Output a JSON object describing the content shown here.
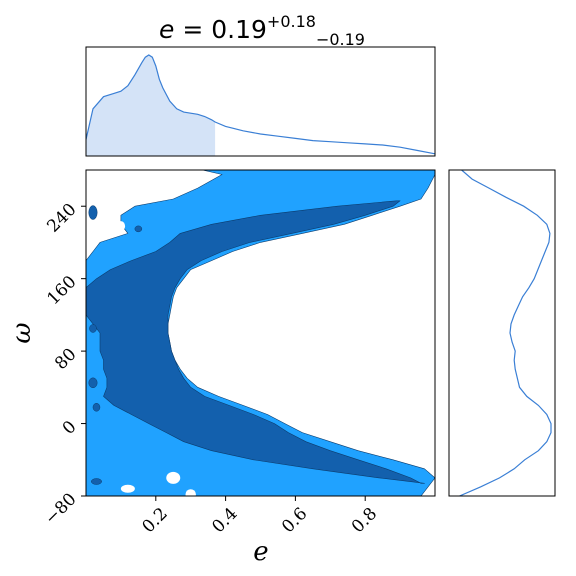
{
  "chart_data": [
    {
      "type": "area",
      "panel": "marginal-e",
      "title": {
        "variable": "e",
        "equals": " = ",
        "value": "0.19",
        "upper": "+0.18",
        "lower": "−0.19"
      },
      "x": [
        0.0,
        0.02,
        0.05,
        0.08,
        0.1,
        0.12,
        0.14,
        0.16,
        0.17,
        0.18,
        0.19,
        0.2,
        0.21,
        0.22,
        0.24,
        0.26,
        0.28,
        0.3,
        0.32,
        0.34,
        0.36,
        0.37,
        0.4,
        0.45,
        0.5,
        0.55,
        0.6,
        0.65,
        0.7,
        0.75,
        0.8,
        0.85,
        0.9,
        0.95,
        1.0
      ],
      "density": [
        0.15,
        0.43,
        0.54,
        0.57,
        0.59,
        0.64,
        0.74,
        0.85,
        0.9,
        0.92,
        0.9,
        0.82,
        0.7,
        0.62,
        0.5,
        0.43,
        0.4,
        0.39,
        0.38,
        0.36,
        0.33,
        0.31,
        0.27,
        0.23,
        0.2,
        0.18,
        0.16,
        0.14,
        0.13,
        0.12,
        0.11,
        0.1,
        0.08,
        0.05,
        0.02
      ],
      "shaded_interval": [
        0.0,
        0.37
      ],
      "xlim": [
        0,
        1
      ],
      "colors": {
        "line": "#3a7fd5",
        "fill": "#d4e3f7"
      }
    },
    {
      "type": "heatmap",
      "panel": "joint-e-omega",
      "xlabel": "e",
      "ylabel": "ω",
      "xlim": [
        0,
        1
      ],
      "ylim": [
        -80,
        280
      ],
      "xticks": [
        0.2,
        0.4,
        0.6,
        0.8
      ],
      "xtick_labels": [
        "0.2",
        "0.4",
        "0.6",
        "0.8"
      ],
      "yticks": [
        -80,
        0,
        80,
        160,
        240
      ],
      "ytick_labels": [
        "−80",
        "0",
        "80",
        "160",
        "240"
      ],
      "levels": [
        "outer",
        "inner"
      ],
      "colors": {
        "outer": "#20a2ff",
        "inner": "#1360ad",
        "edge": "#0b3c6e"
      },
      "outer_region_e_at_omega": {
        "omega": [
          283,
          275,
          260,
          248,
          240,
          230,
          220,
          210,
          200,
          190,
          180,
          170,
          160,
          150,
          140,
          130,
          120,
          110,
          100,
          90,
          80,
          70,
          60,
          50,
          40,
          30,
          20,
          10,
          0,
          -10,
          -20,
          -30,
          -40,
          -50,
          -60,
          -70,
          -80
        ],
        "e_min": [
          0.3,
          0.39,
          0.32,
          0.25,
          0.14,
          0.1,
          0.1,
          0.12,
          0.04,
          0.02,
          0.0,
          0.0,
          0.0,
          0.0,
          0.0,
          0.0,
          0.0,
          0.0,
          0.0,
          0.0,
          0.0,
          0.0,
          0.0,
          0.0,
          0.0,
          0.0,
          0.0,
          0.0,
          0.0,
          0.0,
          0.0,
          0.0,
          0.0,
          0.0,
          0.0,
          0.0,
          0.0
        ],
        "e_max": [
          1.0,
          1.0,
          0.98,
          0.96,
          0.9,
          0.82,
          0.74,
          0.62,
          0.5,
          0.42,
          0.36,
          0.3,
          0.28,
          0.26,
          0.25,
          0.245,
          0.24,
          0.235,
          0.235,
          0.24,
          0.245,
          0.255,
          0.27,
          0.29,
          0.32,
          0.38,
          0.45,
          0.52,
          0.57,
          0.62,
          0.7,
          0.78,
          0.88,
          0.97,
          1.0,
          0.98,
          0.96
        ]
      },
      "inner_region_e_at_omega": {
        "omega": [
          246,
          240,
          230,
          220,
          210,
          200,
          190,
          180,
          170,
          160,
          150,
          140,
          130,
          120,
          110,
          100,
          90,
          80,
          70,
          60,
          50,
          40,
          30,
          20,
          10,
          0,
          -10,
          -20,
          -30,
          -40,
          -50,
          -60,
          -66
        ],
        "e_min": [
          0.89,
          0.72,
          0.5,
          0.36,
          0.27,
          0.24,
          0.2,
          0.13,
          0.07,
          0.03,
          0.0,
          0.0,
          0.0,
          0.0,
          0.02,
          0.04,
          0.04,
          0.04,
          0.05,
          0.05,
          0.06,
          0.06,
          0.05,
          0.08,
          0.13,
          0.18,
          0.23,
          0.28,
          0.36,
          0.48,
          0.65,
          0.84,
          0.97
        ],
        "e_max": [
          0.9,
          0.88,
          0.8,
          0.71,
          0.59,
          0.47,
          0.39,
          0.33,
          0.29,
          0.27,
          0.255,
          0.245,
          0.24,
          0.235,
          0.235,
          0.235,
          0.24,
          0.245,
          0.255,
          0.265,
          0.28,
          0.3,
          0.34,
          0.41,
          0.48,
          0.54,
          0.58,
          0.63,
          0.7,
          0.78,
          0.86,
          0.93,
          0.96
        ]
      }
    },
    {
      "type": "line",
      "panel": "marginal-omega",
      "orientation": "vertical",
      "ylim": [
        -80,
        280
      ],
      "omega": [
        -80,
        -70,
        -60,
        -50,
        -40,
        -30,
        -20,
        -10,
        0,
        10,
        20,
        30,
        40,
        60,
        70,
        80,
        90,
        100,
        110,
        120,
        130,
        140,
        150,
        160,
        180,
        200,
        210,
        220,
        230,
        240,
        250,
        260,
        270,
        280
      ],
      "density": [
        0.1,
        0.3,
        0.48,
        0.62,
        0.72,
        0.85,
        0.93,
        0.97,
        0.97,
        0.93,
        0.85,
        0.74,
        0.67,
        0.63,
        0.62,
        0.63,
        0.6,
        0.58,
        0.59,
        0.62,
        0.66,
        0.7,
        0.76,
        0.81,
        0.88,
        0.95,
        0.96,
        0.93,
        0.84,
        0.71,
        0.54,
        0.38,
        0.22,
        0.12
      ],
      "colors": {
        "line": "#3a7fd5"
      }
    }
  ]
}
